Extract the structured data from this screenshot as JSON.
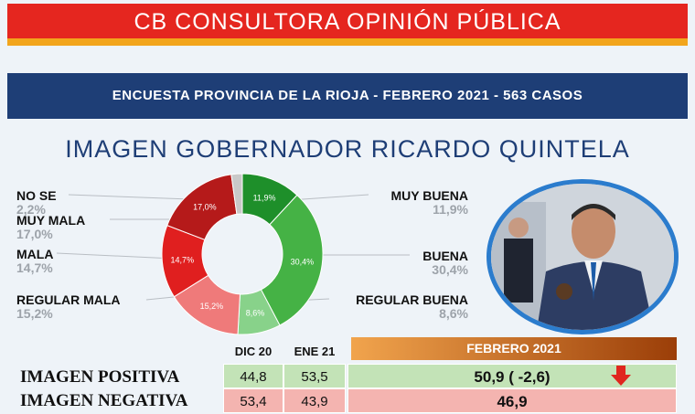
{
  "header": {
    "title": "CB CONSULTORA OPINIÓN PÚBLICA",
    "subtitle": "ENCUESTA PROVINCIA DE LA RIOJA - FEBRERO 2021 - 563 CASOS"
  },
  "chart_data": {
    "type": "pie",
    "title": "IMAGEN GOBERNADOR RICARDO QUINTELA",
    "slices": [
      {
        "label": "MUY BUENA",
        "value": 11.9,
        "display": "11,9%",
        "color": "#1e8f2a"
      },
      {
        "label": "BUENA",
        "value": 30.4,
        "display": "30,4%",
        "color": "#45b245"
      },
      {
        "label": "REGULAR BUENA",
        "value": 8.6,
        "display": "8,6%",
        "color": "#88d28a"
      },
      {
        "label": "REGULAR MALA",
        "value": 15.2,
        "display": "15,2%",
        "color": "#ef7a7a"
      },
      {
        "label": "MALA",
        "value": 14.7,
        "display": "14,7%",
        "color": "#e01f1f"
      },
      {
        "label": "MUY MALA",
        "value": 17.0,
        "display": "17,0%",
        "color": "#b51a1a"
      },
      {
        "label": "NO SE",
        "value": 2.2,
        "display": "2,2%",
        "color": "#c9c9c9"
      }
    ],
    "legend": {
      "muy_buena": {
        "label": "MUY BUENA",
        "pct": "11,9%"
      },
      "buena": {
        "label": "BUENA",
        "pct": "30,4%"
      },
      "regular_buena": {
        "label": "REGULAR BUENA",
        "pct": "8,6%"
      },
      "regular_mala": {
        "label": "REGULAR MALA",
        "pct": "15,2%"
      },
      "mala": {
        "label": "MALA",
        "pct": "14,7%"
      },
      "muy_mala": {
        "label": "MUY MALA",
        "pct": "17,0%"
      },
      "no_se": {
        "label": "NO SE",
        "pct": "2,2%"
      }
    }
  },
  "table": {
    "columns": {
      "dic": "DIC 20",
      "ene": "ENE 21",
      "feb": "FEBRERO 2021"
    },
    "positiva": {
      "label": "IMAGEN POSITIVA",
      "dic": "44,8",
      "ene": "53,5",
      "feb": "50,9 ( -2,6)"
    },
    "negativa": {
      "label": "IMAGEN NEGATIVA",
      "dic": "53,4",
      "ene": "43,9",
      "feb": "46,9"
    },
    "colors": {
      "positive": "#c3e3b7",
      "negative": "#f4b4b0",
      "down_arrow": "#e0261f"
    }
  }
}
